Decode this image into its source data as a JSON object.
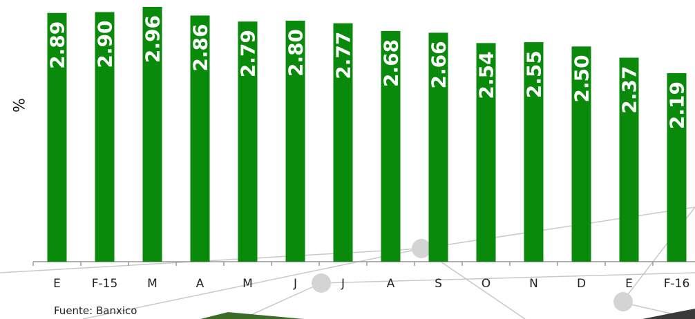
{
  "chart_data": {
    "type": "bar",
    "categories": [
      "E",
      "F-15",
      "M",
      "A",
      "M",
      "J",
      "J",
      "A",
      "S",
      "O",
      "N",
      "D",
      "E",
      "F-16"
    ],
    "values": [
      2.89,
      2.9,
      2.96,
      2.86,
      2.79,
      2.8,
      2.77,
      2.68,
      2.66,
      2.54,
      2.55,
      2.5,
      2.37,
      2.19
    ],
    "value_labels": [
      "2.89",
      "2.90",
      "2.96",
      "2.86",
      "2.79",
      "2.80",
      "2.77",
      "2.68",
      "2.66",
      "2.54",
      "2.55",
      "2.50",
      "2.37",
      "2.19"
    ],
    "title": "",
    "xlabel": "",
    "ylabel": "%",
    "ylim": [
      0,
      2.96
    ],
    "grid": false,
    "bar_color": "#0a8a0a"
  },
  "source_note": "Fuente: Banxico"
}
